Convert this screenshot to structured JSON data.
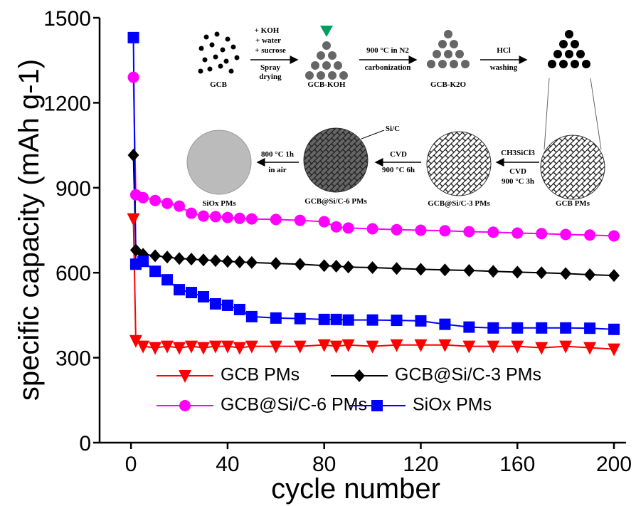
{
  "chart_data": {
    "type": "line",
    "x_label": "cycle number",
    "y_label": "specific capacity (mAh g-1)",
    "x": [
      1,
      2,
      5,
      10,
      15,
      20,
      25,
      30,
      35,
      40,
      45,
      50,
      60,
      70,
      80,
      85,
      90,
      100,
      110,
      120,
      130,
      140,
      150,
      160,
      170,
      180,
      190,
      200
    ],
    "series": [
      {
        "name": "GCB PMs",
        "color": "#ff0000",
        "marker": "triangle-down",
        "values": [
          790,
          360,
          340,
          335,
          340,
          335,
          340,
          335,
          340,
          340,
          335,
          340,
          340,
          340,
          345,
          340,
          345,
          340,
          345,
          345,
          345,
          340,
          340,
          340,
          335,
          340,
          335,
          330
        ]
      },
      {
        "name": "GCB@Si/C-3 PMs",
        "color": "#000000",
        "marker": "diamond",
        "values": [
          1015,
          680,
          665,
          660,
          655,
          650,
          648,
          645,
          643,
          640,
          638,
          636,
          633,
          630,
          625,
          623,
          620,
          618,
          615,
          612,
          610,
          608,
          605,
          602,
          600,
          597,
          593,
          590
        ]
      },
      {
        "name": "GCB@Si/C-6 PMs",
        "color": "#ff00ff",
        "marker": "circle",
        "values": [
          1290,
          875,
          865,
          855,
          845,
          835,
          810,
          800,
          798,
          795,
          792,
          790,
          788,
          785,
          780,
          762,
          758,
          755,
          752,
          750,
          748,
          745,
          743,
          740,
          738,
          735,
          733,
          730
        ]
      },
      {
        "name": "SiOx PMs",
        "color": "#0000ff",
        "marker": "square",
        "values": [
          1430,
          630,
          640,
          605,
          575,
          540,
          530,
          515,
          490,
          485,
          470,
          445,
          440,
          438,
          435,
          435,
          433,
          433,
          432,
          430,
          418,
          408,
          405,
          405,
          405,
          405,
          404,
          400
        ]
      }
    ],
    "xlim": [
      -13,
      205
    ],
    "ylim": [
      0,
      1500
    ],
    "xticks": [
      0,
      40,
      80,
      120,
      160,
      200
    ],
    "yticks": [
      0,
      300,
      600,
      900,
      1200,
      1500
    ],
    "legend": "bottom-center"
  },
  "inset": {
    "texts": [
      "GCB",
      "+ KOH",
      "+ water",
      "+ sucrose",
      "Spray",
      "drying",
      "GCB-KOH",
      "900 °C in N2",
      "carbonization",
      "GCB-K2O",
      "HCl",
      "washing",
      "GCB PMs",
      "CH3SiCl3",
      "CVD",
      "900 °C 3h",
      "GCB@Si/C-3 PMs",
      "CVD",
      "900 °C 6h",
      "GCB@Si/C-6 PMs",
      "Si/C",
      "800 °C 1h",
      "in air",
      "SiOx PMs"
    ]
  }
}
